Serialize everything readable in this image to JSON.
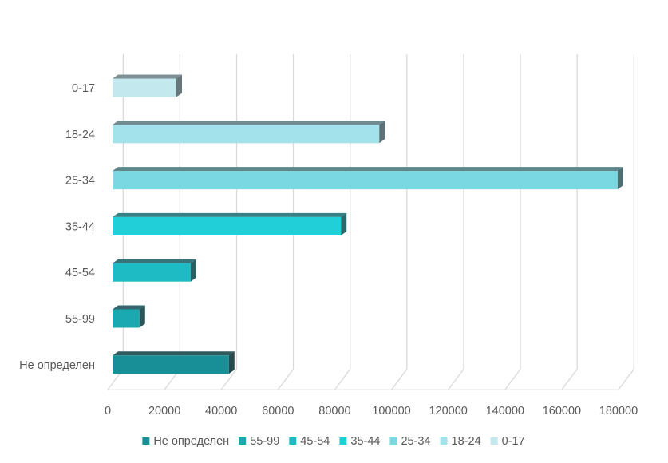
{
  "chart_data": {
    "type": "bar",
    "orientation": "horizontal",
    "style": "3d",
    "categories": [
      "0-17",
      "18-24",
      "25-34",
      "35-44",
      "45-54",
      "55-99",
      "Не определен"
    ],
    "values": [
      22500,
      94000,
      178000,
      80500,
      27500,
      9500,
      41000
    ],
    "series_colors": [
      "#c3e9ee",
      "#a3e2ea",
      "#79d8e1",
      "#20cfd8",
      "#1fbbc5",
      "#1aa9b1",
      "#188f96"
    ],
    "xlim": [
      0,
      180000
    ],
    "xticks": [
      0,
      20000,
      40000,
      60000,
      80000,
      100000,
      120000,
      140000,
      160000,
      180000
    ],
    "xtick_labels": [
      "0",
      "20000",
      "40000",
      "60000",
      "80000",
      "100000",
      "120000",
      "140000",
      "160000",
      "180000"
    ],
    "grid": true,
    "legend_position": "bottom",
    "legend": [
      "Не определен",
      "55-99",
      "45-54",
      "35-44",
      "25-34",
      "18-24",
      "0-17"
    ],
    "legend_colors": [
      "#188f96",
      "#1aa9b1",
      "#1fbbc5",
      "#20cfd8",
      "#79d8e1",
      "#a3e2ea",
      "#c3e9ee"
    ]
  }
}
